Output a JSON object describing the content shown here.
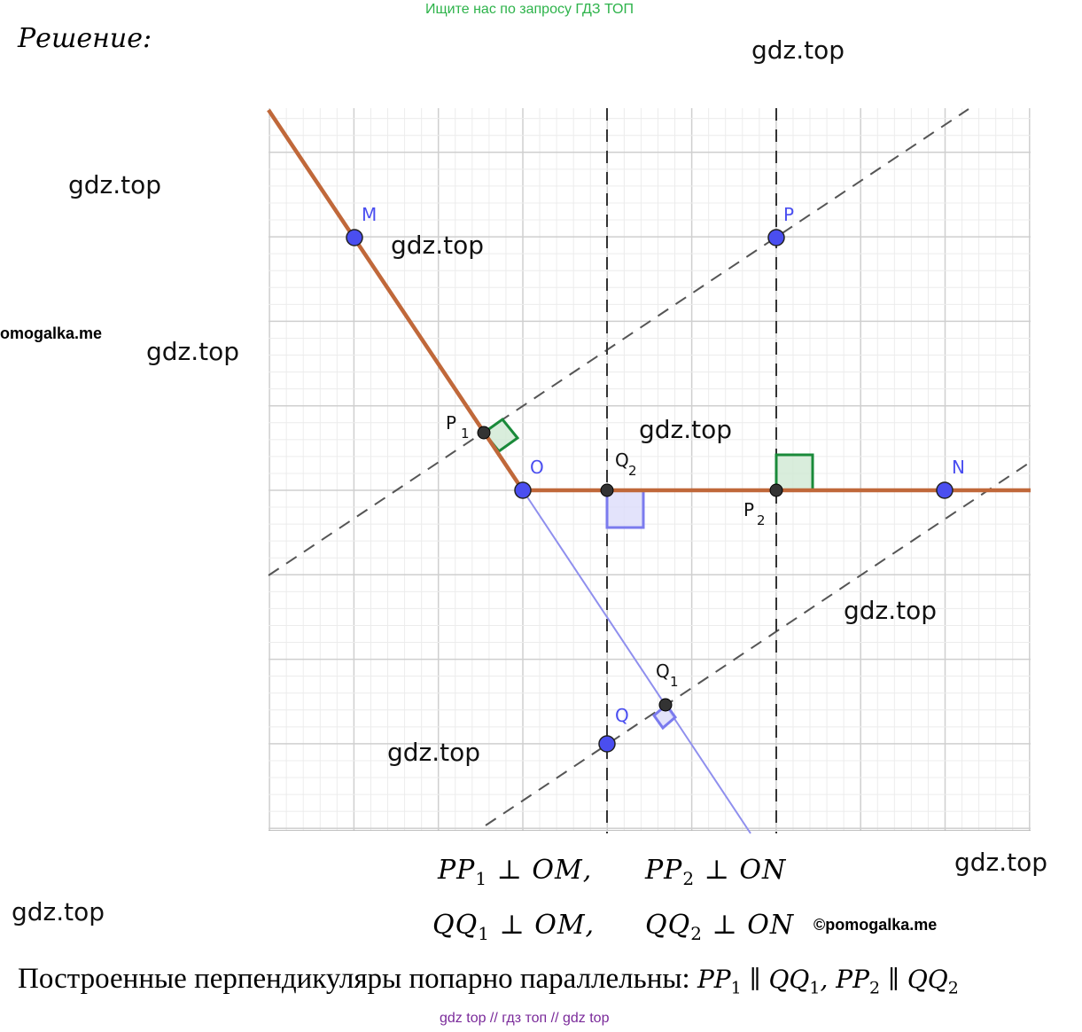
{
  "banner": "Ищите нас по запросу ГДЗ ТОП",
  "heading": "Решение:",
  "watermark": "gdz.top",
  "brand_left": "omogalka.me",
  "brand_right": "©pomogalka.me",
  "points": {
    "M": "M",
    "P": "P",
    "O": "O",
    "N": "N",
    "Q": "Q",
    "P1": "P",
    "P1_sub": "1",
    "P2": "P",
    "P2_sub": "2",
    "Q1": "Q",
    "Q1_sub": "1",
    "Q2": "Q",
    "Q2_sub": "2"
  },
  "formulas": {
    "f1": {
      "a": "PP",
      "sub": "1",
      "b": " ⊥ OM,"
    },
    "f2": {
      "a": "PP",
      "sub": "2",
      "b": " ⊥ ON"
    },
    "f3": {
      "a": "QQ",
      "sub": "1",
      "b": " ⊥ OM,"
    },
    "f4": {
      "a": "QQ",
      "sub": "2",
      "b": " ⊥ ON"
    }
  },
  "statement": {
    "text": "Построенные перпендикуляры попарно параллельны: ",
    "m1": "PP",
    "s1": "1",
    "p1": " ∥ ",
    "m2": "QQ",
    "s2": "1",
    "p2": ", ",
    "m3": "PP",
    "s3": "2",
    "p3": " ∥ ",
    "m4": "QQ",
    "s4": "2"
  },
  "footer": "gdz top  //  гдз топ  //  gdz top",
  "colors": {
    "ray": "#c0683a",
    "blue_line": "#8f8fee",
    "point": "#4a4ef0",
    "aux_point": "#333333",
    "green_mark": "#1a8a3a",
    "blue_mark": "#7b7bee",
    "grid_major": "#cfcfcf",
    "grid_minor": "#ececec"
  }
}
